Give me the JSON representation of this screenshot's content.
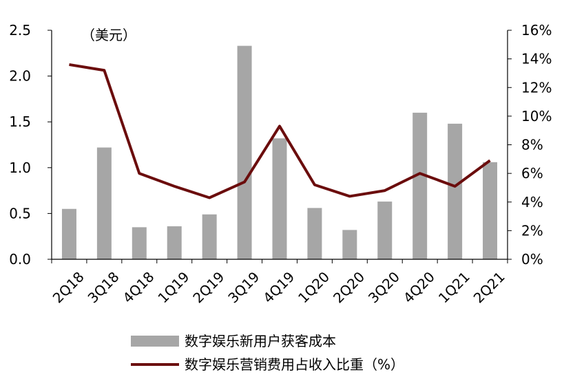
{
  "chart_data": {
    "type": "bar",
    "unit_label": "（美元）",
    "categories": [
      "2Q18",
      "3Q18",
      "4Q18",
      "1Q19",
      "2Q19",
      "3Q19",
      "4Q19",
      "1Q20",
      "2Q20",
      "3Q20",
      "4Q20",
      "1Q21",
      "2Q21"
    ],
    "ylim_left": [
      0,
      2.5
    ],
    "ylim_right": [
      0,
      16
    ],
    "yticks_left": [
      "0.0",
      "0.5",
      "1.0",
      "1.5",
      "2.0",
      "2.5"
    ],
    "yticks_right": [
      "0%",
      "2%",
      "4%",
      "6%",
      "8%",
      "10%",
      "12%",
      "14%",
      "16%"
    ],
    "series": [
      {
        "name": "数字娱乐新用户获客成本",
        "kind": "bar",
        "axis": "left",
        "color": "#a6a6a6",
        "values": [
          0.55,
          1.22,
          0.35,
          0.36,
          0.49,
          2.33,
          1.32,
          0.56,
          0.32,
          0.63,
          1.6,
          1.48,
          1.06
        ]
      },
      {
        "name": "数字娱乐营销费用占收入比重（%）",
        "kind": "line",
        "axis": "right",
        "color": "#6b0d0d",
        "values": [
          13.6,
          13.2,
          6.0,
          5.1,
          4.3,
          5.4,
          9.3,
          5.2,
          4.4,
          4.8,
          6.0,
          5.1,
          6.9
        ]
      }
    ],
    "grid": false,
    "legend_position": "bottom"
  }
}
